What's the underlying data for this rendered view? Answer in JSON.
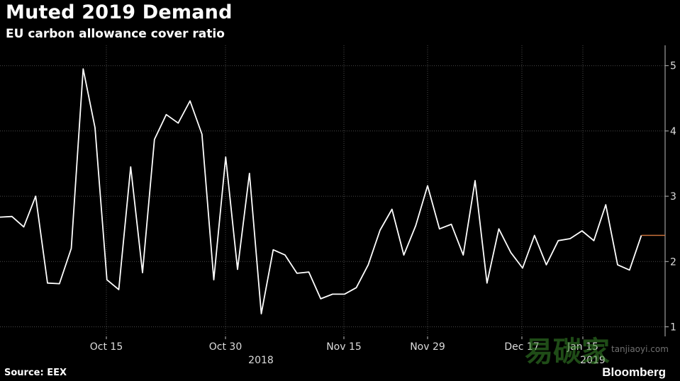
{
  "header": {
    "title": "Muted 2019 Demand",
    "subtitle": "EU carbon allowance cover ratio"
  },
  "footer": {
    "source": "Source: EEX",
    "brand": "Bloomberg"
  },
  "watermark": {
    "text": "tanjiaoyi.com"
  },
  "colors": {
    "background": "#000000",
    "line": "#ffffff",
    "grid": "#4a4a4a",
    "last_value_marker": "#c8703a"
  },
  "chart_data": {
    "type": "line",
    "title": "Muted 2019 Demand",
    "subtitle": "EU carbon allowance cover ratio",
    "xlabel": "",
    "ylabel": "",
    "ylim": [
      0.85,
      5.3
    ],
    "y_ticks": [
      1,
      2,
      3,
      4,
      5
    ],
    "y_axis_position": "right",
    "grid": true,
    "x_tick_labels": [
      "Oct 15",
      "Oct 30",
      "Nov 15",
      "Nov 29",
      "Dec 17",
      "Jan 15"
    ],
    "year_labels": [
      "2018",
      "2019"
    ],
    "series": [
      {
        "values": [
          2.68,
          2.69,
          2.53,
          3.0,
          1.67,
          1.66,
          2.2,
          4.95,
          4.05,
          1.72,
          1.57,
          3.45,
          1.83,
          3.87,
          4.25,
          4.12,
          4.46,
          3.95,
          1.72,
          3.6,
          1.88,
          3.35,
          1.2,
          2.18,
          2.1,
          1.82,
          1.84,
          1.43,
          1.5,
          1.5,
          1.6,
          1.95,
          2.48,
          2.8,
          2.1,
          2.55,
          3.16,
          2.5,
          2.57,
          2.1,
          3.24,
          1.67,
          2.5,
          2.14,
          1.9,
          2.4,
          1.95,
          2.32,
          2.35,
          2.47,
          2.32,
          2.87,
          1.95,
          1.87,
          2.4
        ]
      }
    ],
    "last_value": 2.4
  }
}
